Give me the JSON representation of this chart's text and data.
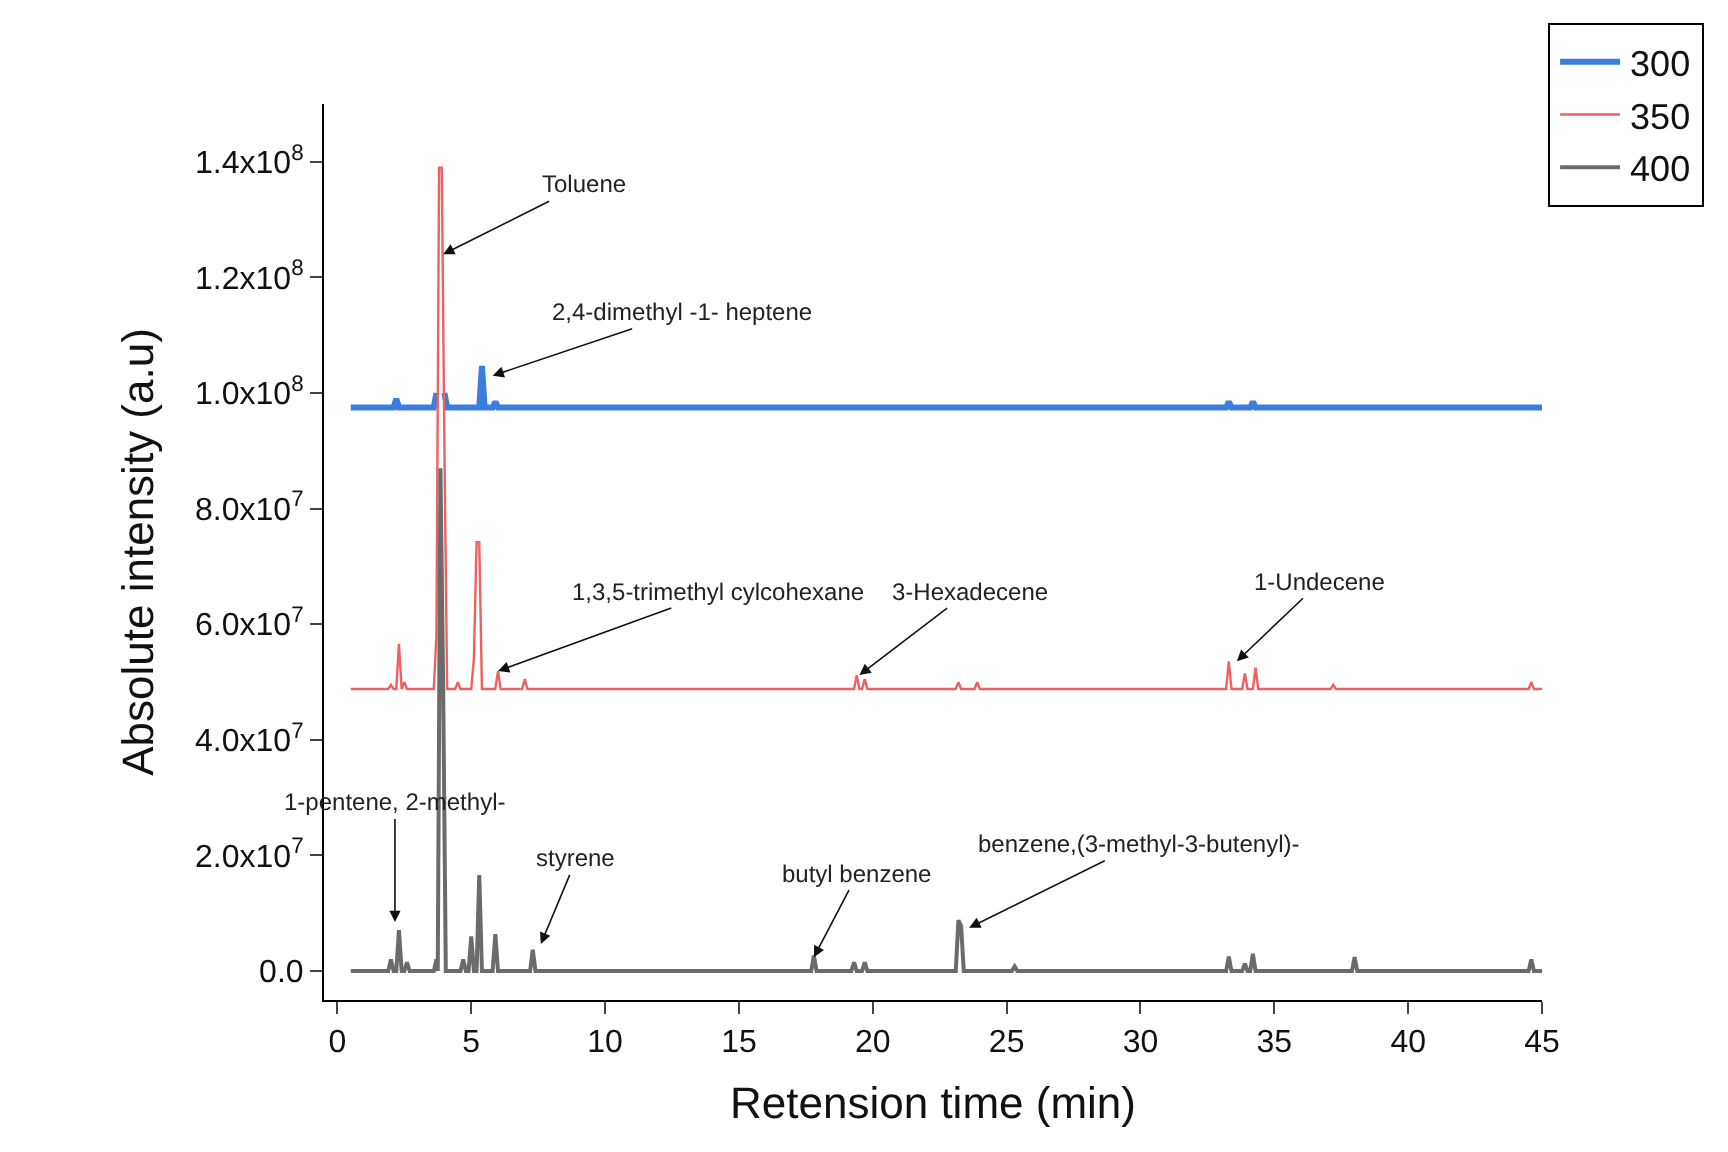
{
  "chart_data": {
    "type": "line",
    "xlabel": "Retension time (min)",
    "ylabel": "Absolute intensity (a.u)",
    "xlim": [
      -0.5,
      45
    ],
    "xticks": [
      0,
      5,
      10,
      15,
      20,
      25,
      30,
      35,
      40,
      45
    ],
    "ylim": [
      -5000000,
      150000000
    ],
    "yticks": [
      {
        "value": 0,
        "label": "0.0"
      },
      {
        "value": 20000000,
        "label": "2.0x10$^{7}$"
      },
      {
        "value": 40000000,
        "label": "4.0x10$^{7}$"
      },
      {
        "value": 60000000,
        "label": "6.0x10$^{7}$"
      },
      {
        "value": 80000000,
        "label": "8.0x10$^{7}$"
      },
      {
        "value": 100000000,
        "label": "1.0x10$^{8}$"
      },
      {
        "value": 120000000,
        "label": "1.2x10$^{8}$"
      },
      {
        "value": 140000000,
        "label": "1.4x10$^{8}$"
      }
    ],
    "grid": false,
    "legend": "top right",
    "marker": "none",
    "line_style": "solid",
    "series": [
      {
        "name": "300",
        "color": "#3b7ddd",
        "x": [
          0.5,
          2.1,
          2.2,
          2.3,
          3.6,
          3.7,
          3.8,
          3.9,
          4.0,
          4.1,
          5.3,
          5.4,
          5.5,
          5.8,
          5.9,
          6.0,
          33.2,
          33.3,
          33.4,
          34.1,
          34.2,
          34.3,
          45
        ],
        "values": [
          97500000,
          97500000,
          99000000,
          97500000,
          97500000,
          100000000,
          null,
          null,
          100000000,
          97500000,
          97500000,
          104700000,
          97500000,
          97500000,
          98500000,
          97500000,
          97500000,
          98500000,
          97500000,
          97500000,
          98500000,
          97500000,
          97500000
        ]
      },
      {
        "name": "350",
        "color": "#f06060",
        "x": [
          0.5,
          1.9,
          2.0,
          2.1,
          2.2,
          2.3,
          2.4,
          2.5,
          2.6,
          3.6,
          3.7,
          3.8,
          3.9,
          4.0,
          4.1,
          4.4,
          4.5,
          4.6,
          5.0,
          5.1,
          5.2,
          5.3,
          5.4,
          5.9,
          6.0,
          6.1,
          6.9,
          7.0,
          7.1,
          19.3,
          19.4,
          19.5,
          19.6,
          19.7,
          19.8,
          23.1,
          23.2,
          23.3,
          23.8,
          23.9,
          24.0,
          33.2,
          33.3,
          33.4,
          33.8,
          33.9,
          34.0,
          34.2,
          34.3,
          34.4,
          37.1,
          37.2,
          37.3,
          44.5,
          44.6,
          44.7,
          45
        ],
        "values": [
          48800000,
          48800000,
          49500000,
          48800000,
          48800000,
          56600000,
          48800000,
          50000000,
          48800000,
          48800000,
          58000000,
          139000000,
          139000000,
          90000000,
          48800000,
          48800000,
          50000000,
          48800000,
          48800000,
          54000000,
          74200000,
          74200000,
          48800000,
          48800000,
          51900000,
          48800000,
          48800000,
          50500000,
          48800000,
          48800000,
          51200000,
          48800000,
          48800000,
          50500000,
          48800000,
          48800000,
          50000000,
          48800000,
          48800000,
          50000000,
          48800000,
          48800000,
          53600000,
          48800000,
          48800000,
          51500000,
          48800000,
          48800000,
          52500000,
          48800000,
          48800000,
          49500000,
          48800000,
          48800000,
          50000000,
          48800000,
          48800000
        ]
      },
      {
        "name": "400",
        "color": "#6b6b6b",
        "x": [
          0.5,
          1.9,
          2.0,
          2.1,
          2.2,
          2.3,
          2.4,
          2.5,
          2.6,
          2.7,
          3.6,
          3.7,
          3.75,
          3.85,
          3.95,
          4.05,
          4.6,
          4.7,
          4.8,
          4.9,
          5.0,
          5.1,
          5.2,
          5.3,
          5.4,
          5.8,
          5.9,
          6.0,
          7.2,
          7.3,
          7.4,
          17.7,
          17.8,
          17.9,
          19.2,
          19.3,
          19.4,
          19.6,
          19.7,
          19.8,
          23.1,
          23.2,
          23.3,
          23.4,
          25.2,
          25.3,
          25.4,
          33.2,
          33.3,
          33.4,
          33.8,
          33.9,
          34.0,
          34.1,
          34.2,
          34.3,
          37.9,
          38.0,
          38.1,
          44.5,
          44.6,
          44.7,
          45
        ],
        "values": [
          0,
          0,
          2000000,
          0,
          0,
          7100000,
          0,
          0,
          1500000,
          0,
          0,
          2000000,
          0,
          87000000,
          50000000,
          0,
          0,
          2000000,
          0,
          0,
          6000000,
          0,
          0,
          16600000,
          0,
          0,
          6400000,
          0,
          0,
          3700000,
          0,
          0,
          2700000,
          0,
          0,
          1500000,
          0,
          0,
          1500000,
          0,
          0,
          8800000,
          7800000,
          0,
          0,
          800000,
          0,
          0,
          2500000,
          0,
          0,
          1300000,
          0,
          0,
          3000000,
          0,
          0,
          2400000,
          0,
          0,
          2000000,
          0,
          0
        ]
      }
    ],
    "annotations": [
      {
        "text": "Toluene",
        "x": 3.95,
        "y": 124000000
      },
      {
        "text": "2,4-dimethyl -1- heptene",
        "x": 5.8,
        "y": 103000000
      },
      {
        "text": "1,3,5-trimethyl cylcohexane",
        "x": 6.0,
        "y": 51900000
      },
      {
        "text": "3-Hexadecene",
        "x": 19.5,
        "y": 51200000
      },
      {
        "text": "1-Undecene",
        "x": 33.6,
        "y": 53600000
      },
      {
        "text": "1-pentene, 2-methyl-",
        "x": 2.15,
        "y": 8500000
      },
      {
        "text": "styrene",
        "x": 7.6,
        "y": 4700000
      },
      {
        "text": "butyl benzene",
        "x": 17.8,
        "y": 2400000
      },
      {
        "text": "benzene,(3-methyl-3-butenyl)-",
        "x": 23.6,
        "y": 7500000
      }
    ]
  }
}
